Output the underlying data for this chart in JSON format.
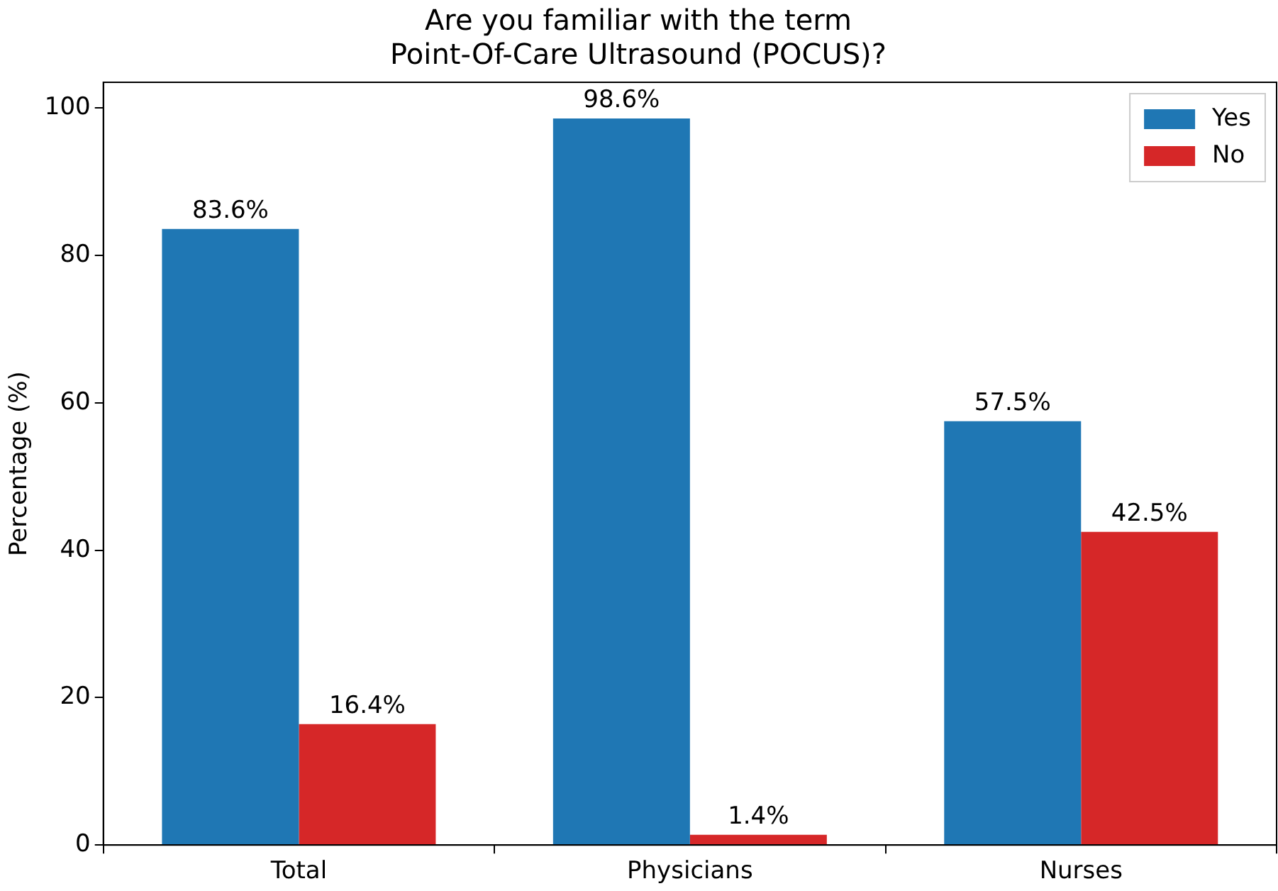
{
  "chart_data": {
    "type": "bar",
    "title": "Are you familiar with the term\nPoint-Of-Care Ultrasound (POCUS)?",
    "ylabel": "Percentage (%)",
    "categories": [
      "Total",
      "Physicians",
      "Nurses"
    ],
    "series": [
      {
        "name": "Yes",
        "color": "#1f77b4",
        "values": [
          83.6,
          98.6,
          57.5
        ],
        "value_labels": [
          "83.6%",
          "98.6%",
          "57.5%"
        ]
      },
      {
        "name": "No",
        "color": "#d62728",
        "values": [
          16.4,
          1.4,
          42.5
        ],
        "value_labels": [
          "16.4%",
          "1.4%",
          "42.5%"
        ]
      }
    ],
    "ylim": [
      0,
      103.5
    ],
    "yticks": [
      0,
      20,
      40,
      60,
      80,
      100
    ],
    "grid": false,
    "legend": "top right"
  }
}
